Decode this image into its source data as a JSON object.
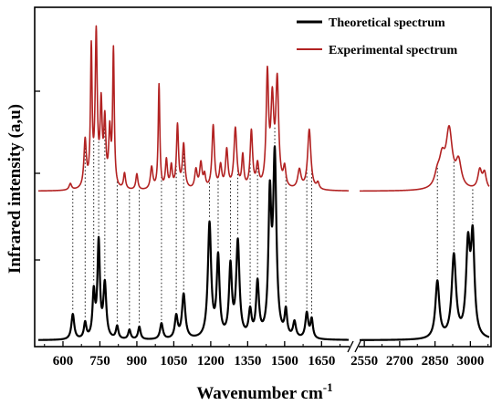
{
  "chart_data": {
    "type": "line",
    "title": "",
    "xlabel": "Wavenumber cm",
    "xlabel_superscript": "-1",
    "ylabel": "Infrared intensity (a,u)",
    "axis_break": true,
    "x_segments": [
      {
        "range": [
          500,
          1760
        ],
        "ticks": [
          "600",
          "750",
          "900",
          "1050",
          "1200",
          "1350",
          "1500",
          "1650"
        ]
      },
      {
        "range": [
          2530,
          3080
        ],
        "ticks": [
          "2550",
          "2700",
          "2850",
          "3000"
        ]
      }
    ],
    "y_ticks_labeled": false,
    "grid": false,
    "legend_position": "top-right",
    "series": [
      {
        "name": "Theoretical spectrum",
        "color": "#000000",
        "baseline": 0.0,
        "peaks": [
          [
            640,
            0.08,
            7
          ],
          [
            690,
            0.05,
            6
          ],
          [
            725,
            0.14,
            6
          ],
          [
            745,
            0.3,
            6
          ],
          [
            770,
            0.17,
            7
          ],
          [
            820,
            0.04,
            6
          ],
          [
            870,
            0.03,
            6
          ],
          [
            910,
            0.04,
            6
          ],
          [
            1000,
            0.05,
            7
          ],
          [
            1060,
            0.07,
            7
          ],
          [
            1090,
            0.14,
            8
          ],
          [
            1195,
            0.36,
            8
          ],
          [
            1230,
            0.25,
            7
          ],
          [
            1280,
            0.22,
            7
          ],
          [
            1310,
            0.3,
            8
          ],
          [
            1360,
            0.08,
            7
          ],
          [
            1390,
            0.17,
            7
          ],
          [
            1440,
            0.42,
            7
          ],
          [
            1460,
            0.56,
            8
          ],
          [
            1505,
            0.08,
            6
          ],
          [
            1540,
            0.05,
            7
          ],
          [
            1590,
            0.08,
            7
          ],
          [
            1610,
            0.06,
            6
          ],
          [
            2860,
            0.18,
            10
          ],
          [
            2930,
            0.26,
            11
          ],
          [
            2990,
            0.28,
            10
          ],
          [
            3010,
            0.3,
            9
          ]
        ]
      },
      {
        "name": "Experimental spectrum",
        "color": "#b22222",
        "baseline": 0.47,
        "peaks": [
          [
            630,
            0.02,
            6
          ],
          [
            690,
            0.15,
            6
          ],
          [
            715,
            0.43,
            4
          ],
          [
            735,
            0.48,
            5
          ],
          [
            755,
            0.25,
            5
          ],
          [
            770,
            0.2,
            5
          ],
          [
            790,
            0.17,
            5
          ],
          [
            805,
            0.43,
            4
          ],
          [
            850,
            0.05,
            5
          ],
          [
            900,
            0.05,
            5
          ],
          [
            960,
            0.07,
            6
          ],
          [
            990,
            0.33,
            4
          ],
          [
            1020,
            0.09,
            5
          ],
          [
            1040,
            0.07,
            5
          ],
          [
            1065,
            0.2,
            5
          ],
          [
            1090,
            0.14,
            6
          ],
          [
            1140,
            0.06,
            6
          ],
          [
            1160,
            0.08,
            6
          ],
          [
            1175,
            0.04,
            5
          ],
          [
            1210,
            0.2,
            6
          ],
          [
            1240,
            0.07,
            6
          ],
          [
            1265,
            0.12,
            6
          ],
          [
            1300,
            0.19,
            7
          ],
          [
            1330,
            0.1,
            5
          ],
          [
            1365,
            0.18,
            6
          ],
          [
            1390,
            0.07,
            6
          ],
          [
            1430,
            0.35,
            6
          ],
          [
            1450,
            0.26,
            7
          ],
          [
            1470,
            0.33,
            7
          ],
          [
            1500,
            0.06,
            6
          ],
          [
            1560,
            0.06,
            8
          ],
          [
            1600,
            0.19,
            8
          ],
          [
            1635,
            0.02,
            6
          ],
          [
            2860,
            0.04,
            14
          ],
          [
            2880,
            0.08,
            14
          ],
          [
            2910,
            0.18,
            16
          ],
          [
            2950,
            0.08,
            14
          ],
          [
            3040,
            0.06,
            10
          ],
          [
            3060,
            0.05,
            9
          ]
        ]
      }
    ],
    "peak_guides_cm": [
      640,
      690,
      725,
      745,
      770,
      820,
      870,
      910,
      1000,
      1060,
      1090,
      1195,
      1230,
      1280,
      1310,
      1360,
      1390,
      1460,
      1505,
      1590,
      1610,
      2860,
      2930,
      3010
    ]
  }
}
